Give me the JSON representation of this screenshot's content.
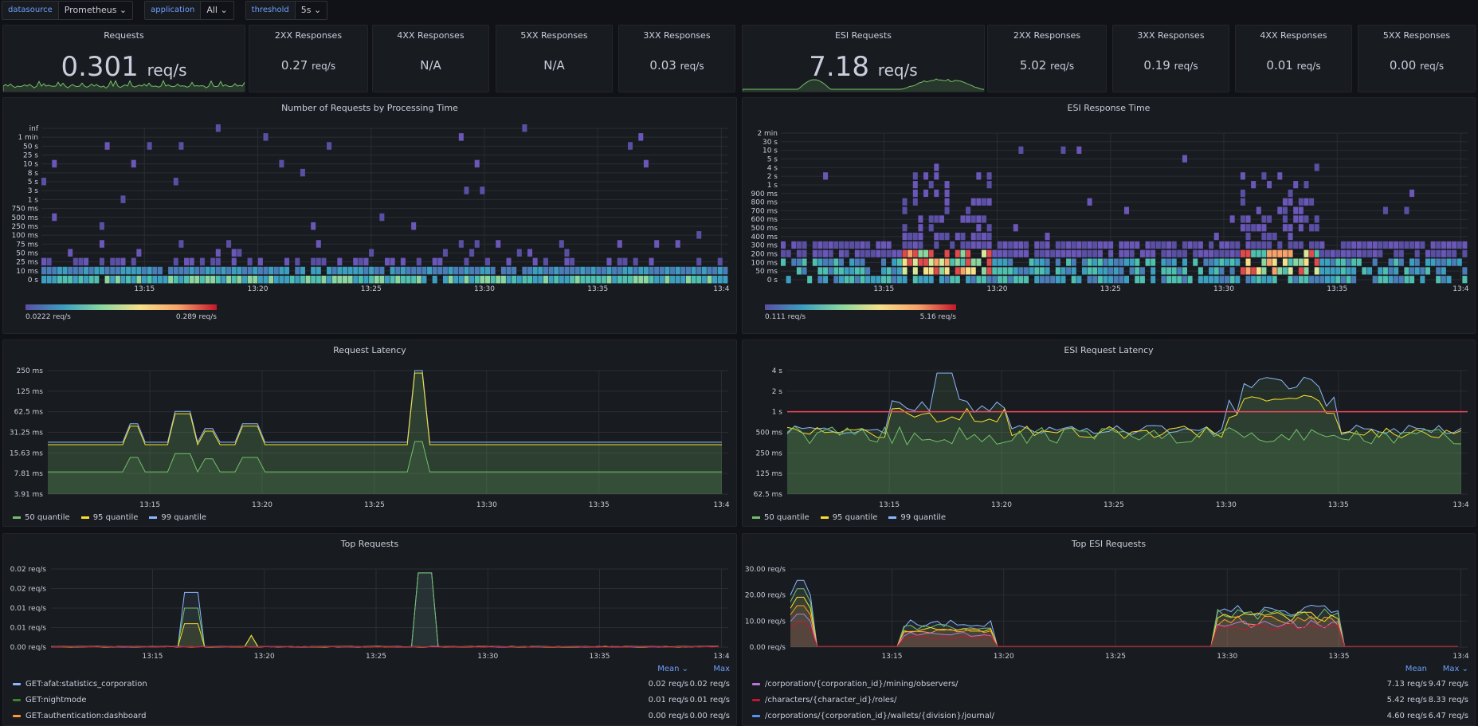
{
  "variables": [
    {
      "label": "datasource",
      "value": "Prometheus ⌄"
    },
    {
      "label": "application",
      "value": "All ⌄"
    },
    {
      "label": "threshold",
      "value": "5s ⌄"
    }
  ],
  "stats": [
    {
      "title": "Requests",
      "value": "0.301",
      "unit": "req/s",
      "big": true
    },
    {
      "title": "2XX Responses",
      "value": "0.27",
      "unit": "req/s"
    },
    {
      "title": "4XX Responses",
      "value": "N/A",
      "unit": ""
    },
    {
      "title": "5XX Responses",
      "value": "N/A",
      "unit": ""
    },
    {
      "title": "3XX Responses",
      "value": "0.03",
      "unit": "req/s"
    },
    {
      "title": "ESI Requests",
      "value": "7.18",
      "unit": "req/s",
      "big": true
    },
    {
      "title": "2XX Responses",
      "value": "5.02",
      "unit": "req/s"
    },
    {
      "title": "3XX Responses",
      "value": "0.19",
      "unit": "req/s"
    },
    {
      "title": "4XX Responses",
      "value": "0.01",
      "unit": "req/s"
    },
    {
      "title": "5XX Responses",
      "value": "0.00",
      "unit": "req/s"
    }
  ],
  "xticks": [
    "13:15",
    "13:20",
    "13:25",
    "13:30",
    "13:35",
    "13:4"
  ],
  "heatmap_left": {
    "title": "Number of Requests by Processing Time",
    "y_labels": [
      "inf",
      "1 min",
      "50 s",
      "25 s",
      "10 s",
      "8 s",
      "5 s",
      "3 s",
      "1 s",
      "750 ms",
      "500 ms",
      "250 ms",
      "100 ms",
      "75 ms",
      "50 ms",
      "25 ms",
      "10 ms",
      "0 s"
    ],
    "scale_min": "0.0222 req/s",
    "scale_max": "0.289 req/s"
  },
  "heatmap_right": {
    "title": "ESI Response Time",
    "y_labels": [
      "2 min",
      "30 s",
      "10 s",
      "5 s",
      "4 s",
      "2 s",
      "1 s",
      "900 ms",
      "800 ms",
      "700 ms",
      "600 ms",
      "500 ms",
      "400 ms",
      "300 ms",
      "200 ms",
      "100 ms",
      "50 ms",
      "0 s"
    ],
    "scale_min": "0.111 req/s",
    "scale_max": "5.16 req/s"
  },
  "latency_left": {
    "title": "Request Latency",
    "y_labels": [
      "250 ms",
      "125 ms",
      "62.5 ms",
      "31.25 ms",
      "15.63 ms",
      "7.81 ms",
      "3.91 ms"
    ],
    "legend": [
      {
        "name": "50 quantile",
        "color": "#73bf69"
      },
      {
        "name": "95 quantile",
        "color": "#fade2a"
      },
      {
        "name": "99 quantile",
        "color": "#8ab8ff"
      }
    ]
  },
  "latency_right": {
    "title": "ESI Request Latency",
    "y_labels": [
      "4 s",
      "2 s",
      "1 s",
      "500 ms",
      "250 ms",
      "125 ms",
      "62.5 ms"
    ],
    "legend": [
      {
        "name": "50 quantile",
        "color": "#73bf69"
      },
      {
        "name": "95 quantile",
        "color": "#fade2a"
      },
      {
        "name": "99 quantile",
        "color": "#8ab8ff"
      }
    ]
  },
  "top_left": {
    "title": "Top Requests",
    "y_labels": [
      "0.02 req/s",
      "0.02 req/s",
      "0.01 req/s",
      "0.01 req/s",
      "0.00 req/s"
    ],
    "col_mean": "Mean ⌄",
    "col_max": "Max",
    "rows": [
      {
        "name": "GET:afat:statistics_corporation",
        "mean": "0.02 req/s",
        "max": "0.02 req/s",
        "color": "#8ab8ff"
      },
      {
        "name": "GET:nightmode",
        "mean": "0.01 req/s",
        "max": "0.01 req/s",
        "color": "#37872d"
      },
      {
        "name": "GET:authentication:dashboard",
        "mean": "0.00 req/s",
        "max": "0.00 req/s",
        "color": "#ff9830"
      }
    ]
  },
  "top_right": {
    "title": "Top ESI Requests",
    "y_labels": [
      "30.00 req/s",
      "20.00 req/s",
      "10.00 req/s",
      "0.00 req/s"
    ],
    "col_mean": "Mean",
    "col_max": "Max ⌄",
    "rows": [
      {
        "name": "/corporation/{corporation_id}/mining/observers/",
        "mean": "7.13 req/s",
        "max": "9.47 req/s",
        "color": "#b877d9"
      },
      {
        "name": "/characters/{character_id}/roles/",
        "mean": "5.42 req/s",
        "max": "8.33 req/s",
        "color": "#c4162a"
      },
      {
        "name": "/corporations/{corporation_id}/wallets/{division}/journal/",
        "mean": "4.60 req/s",
        "max": "6.47 req/s",
        "color": "#5794f2"
      }
    ]
  }
}
